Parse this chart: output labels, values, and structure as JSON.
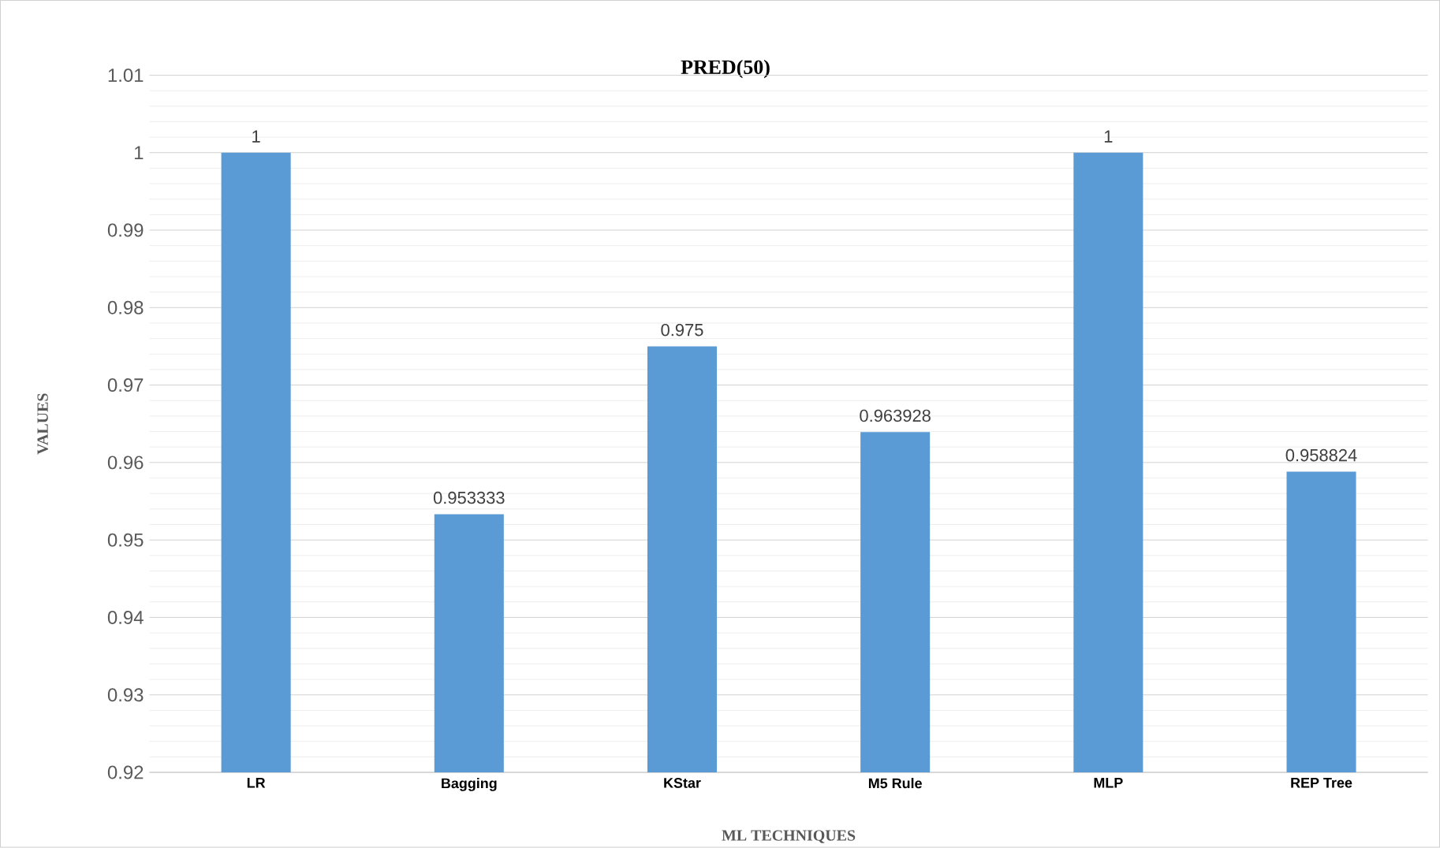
{
  "chart_data": {
    "type": "bar",
    "title": "PRED(50)",
    "xlabel": "ML TECHNIQUES",
    "ylabel": "VALUES",
    "categories": [
      "LR",
      "Bagging",
      "KStar",
      "M5 Rule",
      "MLP",
      "REP Tree"
    ],
    "values": [
      1,
      0.953333,
      0.975,
      0.963928,
      1,
      0.958824
    ],
    "color": "#5b9bd5",
    "ylim": [
      0.92,
      1.01
    ],
    "yticks": [
      0.92,
      0.93,
      0.94,
      0.95,
      0.96,
      0.97,
      0.98,
      0.99,
      1,
      1.01
    ],
    "grid": "y",
    "data_labels": true
  }
}
